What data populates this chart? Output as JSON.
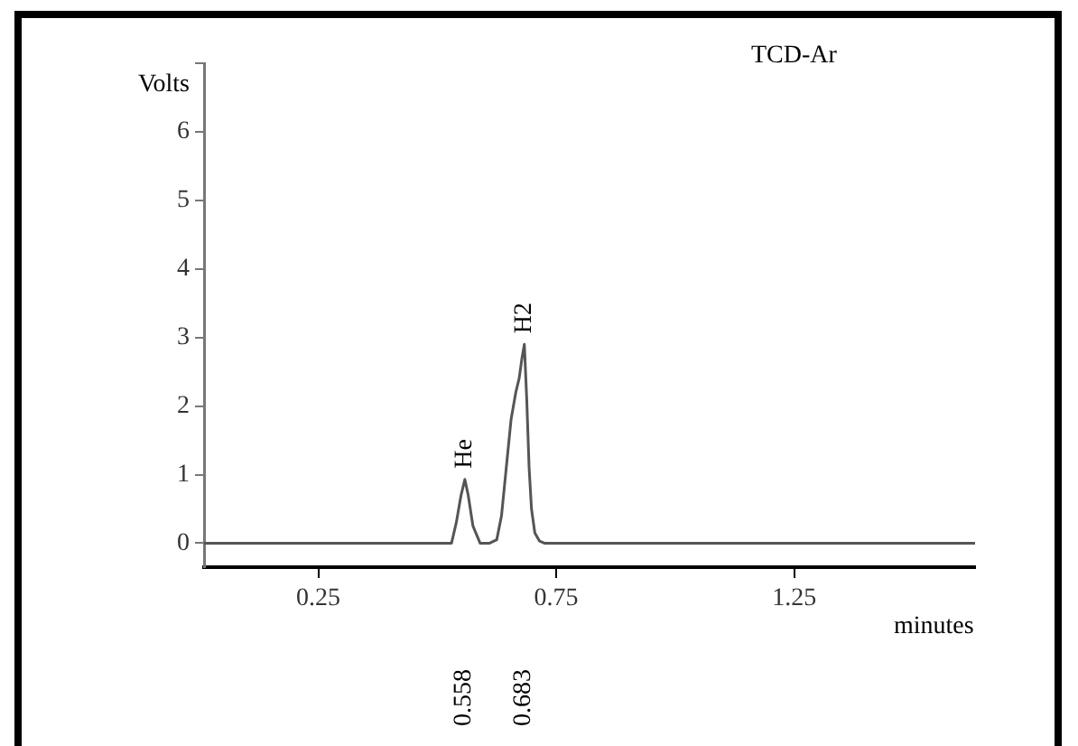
{
  "chart_data": {
    "type": "line",
    "title": "TCD-Ar",
    "xlabel": "minutes",
    "ylabel": "Volts",
    "x": [
      0.01,
      0.53,
      0.54,
      0.55,
      0.558,
      0.565,
      0.575,
      0.59,
      0.61,
      0.625,
      0.635,
      0.645,
      0.655,
      0.665,
      0.672,
      0.678,
      0.683,
      0.688,
      0.693,
      0.698,
      0.705,
      0.715,
      0.725,
      1.63
    ],
    "series": [
      {
        "color": "#555555",
        "values": [
          0,
          0,
          0.3,
          0.7,
          0.93,
          0.7,
          0.25,
          0,
          0,
          0.05,
          0.4,
          1.1,
          1.8,
          2.2,
          2.4,
          2.7,
          2.9,
          2.1,
          1.1,
          0.5,
          0.15,
          0.03,
          0,
          0
        ]
      }
    ],
    "xlim": [
      0.01,
      1.63
    ],
    "xticks": [
      0.25,
      0.75,
      1.25
    ],
    "ylim": [
      -0.35,
      7
    ],
    "yticks": [
      0,
      1,
      2,
      3,
      4,
      5,
      6,
      {
        "value": 7,
        "label": null
      }
    ],
    "grid": false,
    "legend": false,
    "marker": "none",
    "line_style": "solid",
    "annotations": [
      {
        "text": "He",
        "x": 0.558,
        "y": 0.93
      },
      {
        "text": "H2",
        "x": 0.683,
        "y": 2.9
      },
      "0.558",
      "0.683"
    ]
  }
}
